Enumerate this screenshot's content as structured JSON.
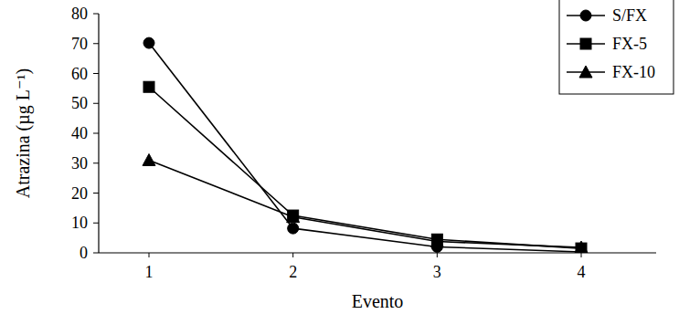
{
  "chart_data": {
    "type": "line",
    "x_label": "Evento",
    "y_label": "Atrazina (µg L⁻¹)",
    "categories": [
      "1",
      "2",
      "3",
      "4"
    ],
    "series": [
      {
        "name": "S/FX",
        "color": "#000000",
        "marker": "circle",
        "values": [
          70.2,
          8.2,
          2.0,
          0.3
        ]
      },
      {
        "name": "FX-5",
        "color": "#000000",
        "marker": "square",
        "values": [
          55.5,
          12.5,
          4.5,
          1.5
        ]
      },
      {
        "name": "FX-10",
        "color": "#000000",
        "marker": "triangle",
        "values": [
          31.0,
          12.0,
          3.8,
          1.8
        ]
      }
    ],
    "ylim": [
      0,
      80
    ],
    "yticks": [
      0,
      10,
      20,
      30,
      40,
      50,
      60,
      70,
      80
    ],
    "grid": false,
    "legend": "top-right"
  }
}
